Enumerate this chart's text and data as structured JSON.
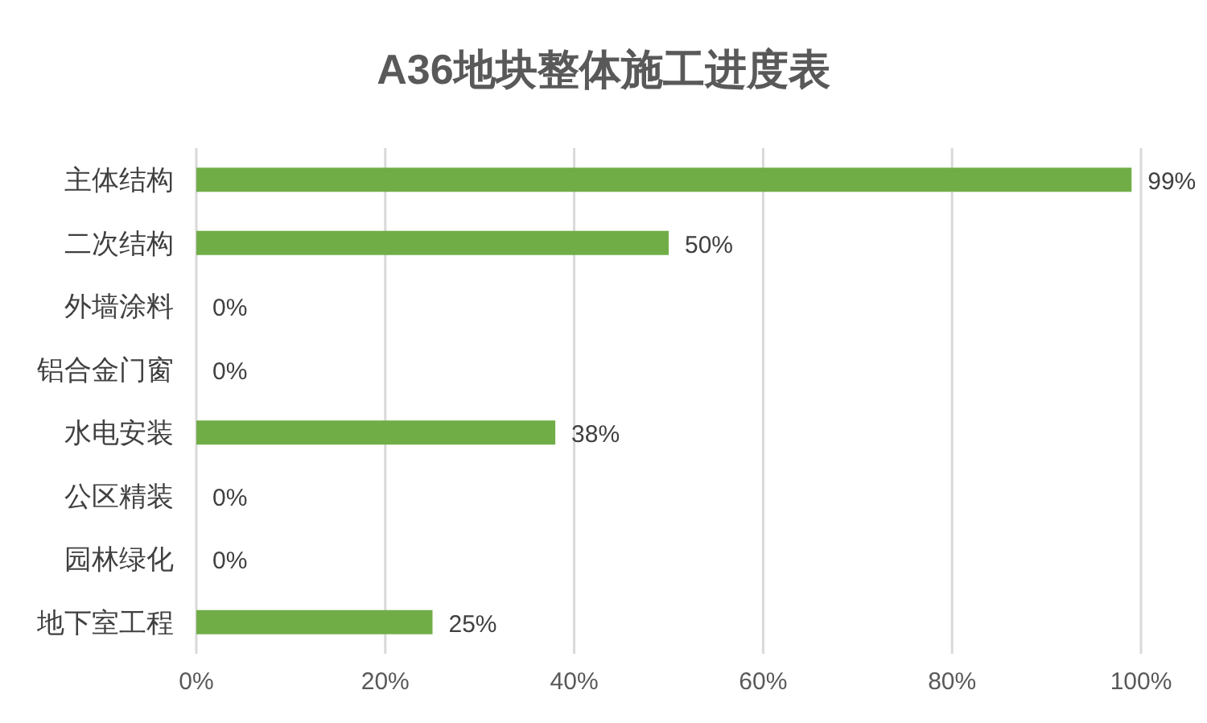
{
  "chart_data": {
    "type": "bar",
    "orientation": "horizontal",
    "title": "A36地块整体施工进度表",
    "categories": [
      "主体结构",
      "二次结构",
      "外墙涂料",
      "铝合金门窗",
      "水电安装",
      "公区精装",
      "园林绿化",
      "地下室工程"
    ],
    "values": [
      99,
      50,
      0,
      0,
      38,
      0,
      0,
      25
    ],
    "value_labels": [
      "99%",
      "50%",
      "0%",
      "0%",
      "38%",
      "0%",
      "0%",
      "25%"
    ],
    "color": "#70ad47",
    "xlim": [
      0,
      100
    ],
    "xticks": [
      {
        "value": 0,
        "label": "0%"
      },
      {
        "value": 20,
        "label": "20%"
      },
      {
        "value": 40,
        "label": "40%"
      },
      {
        "value": 60,
        "label": "60%"
      },
      {
        "value": 80,
        "label": "80%"
      },
      {
        "value": 100,
        "label": "100%"
      }
    ],
    "grid": "x"
  }
}
